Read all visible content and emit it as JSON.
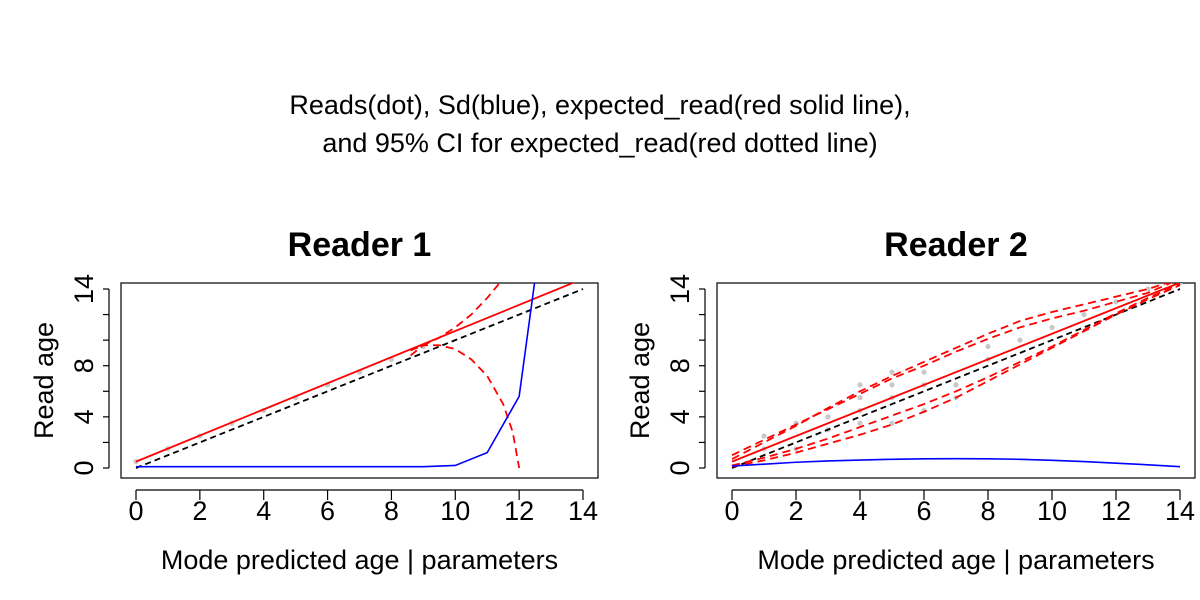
{
  "figure": {
    "title_line1": "Reads(dot), Sd(blue), expected_read(red solid line),",
    "title_line2": "and 95% CI for expected_read(red dotted line)"
  },
  "chart_data": [
    {
      "type": "line",
      "title": "Reader 1",
      "xlabel": "Mode predicted age | parameters",
      "ylabel": "Read age",
      "xlim": [
        0,
        14
      ],
      "ylim": [
        0,
        14
      ],
      "xticks": [
        0,
        2,
        4,
        6,
        8,
        10,
        12,
        14
      ],
      "yticks": [
        0,
        4,
        8,
        14
      ],
      "grid": false,
      "colors": {
        "reads": "#c8c8c8",
        "sd": "#0000ff",
        "expected": "#ff0000",
        "ci": "#ff0000",
        "identity": "#000000"
      },
      "reads_points": {
        "x": [
          0,
          1,
          2,
          3,
          4,
          5,
          6,
          7,
          8,
          9
        ],
        "y": [
          0.5,
          1.5,
          2.5,
          3.5,
          4.5,
          5.5,
          6.5,
          7.5,
          8.5,
          9.5
        ]
      },
      "expected_read": {
        "x": [
          0,
          14
        ],
        "y": [
          0.5,
          14.8
        ]
      },
      "identity_line": {
        "x": [
          0,
          14
        ],
        "y": [
          0,
          14
        ]
      },
      "sd": {
        "x": [
          0,
          1,
          2,
          3,
          4,
          5,
          6,
          7,
          8,
          9,
          10,
          11,
          12,
          12.5
        ],
        "y": [
          0.1,
          0.1,
          0.1,
          0.1,
          0.1,
          0.1,
          0.1,
          0.1,
          0.1,
          0.1,
          0.2,
          1.2,
          5.6,
          14.8
        ]
      },
      "ci_upper": {
        "x": [
          8.6,
          9.0,
          9.5,
          10.0,
          10.5,
          11.0,
          11.5
        ],
        "y": [
          9.2,
          9.6,
          10.2,
          11.0,
          12.0,
          13.3,
          14.8
        ]
      },
      "ci_lower": {
        "x": [
          8.6,
          9.0,
          9.5,
          10.0,
          10.5,
          11.0,
          11.5,
          11.8,
          12.0
        ],
        "y": [
          8.8,
          9.6,
          9.6,
          9.3,
          8.5,
          7.2,
          5.0,
          2.8,
          0
        ]
      }
    },
    {
      "type": "line",
      "title": "Reader 2",
      "xlabel": "Mode predicted age | parameters",
      "ylabel": "Read age",
      "xlim": [
        0,
        14
      ],
      "ylim": [
        0,
        14
      ],
      "xticks": [
        0,
        2,
        4,
        6,
        8,
        10,
        12,
        14
      ],
      "yticks": [
        0,
        4,
        8,
        14
      ],
      "grid": false,
      "colors": {
        "reads": "#c8c8c8",
        "sd": "#0000ff",
        "expected": "#ff0000",
        "ci": "#ff0000",
        "identity": "#000000"
      },
      "reads_points": {
        "x": [
          1,
          1,
          2,
          2,
          3,
          3,
          4,
          4,
          4,
          4,
          5,
          5,
          5,
          5,
          6,
          6,
          6,
          7,
          7,
          8,
          8,
          9,
          10,
          11,
          12,
          13,
          14
        ],
        "y": [
          1.5,
          2.5,
          1.5,
          3.5,
          3.0,
          4.0,
          3.5,
          4.5,
          5.5,
          6.5,
          3.5,
          5.5,
          6.5,
          7.5,
          4.5,
          6.5,
          7.5,
          5.5,
          6.5,
          8.5,
          9.5,
          10.0,
          11.0,
          12.0,
          13.0,
          14.0,
          14.5
        ]
      },
      "expected_read": {
        "x": [
          0,
          14
        ],
        "y": [
          0.5,
          14.5
        ]
      },
      "identity_line": {
        "x": [
          0,
          14
        ],
        "y": [
          0,
          14
        ]
      },
      "sd": {
        "x": [
          0,
          1,
          2,
          3,
          4,
          5,
          6,
          7,
          8,
          9,
          10,
          11,
          12,
          13,
          14
        ],
        "y": [
          0.15,
          0.3,
          0.45,
          0.55,
          0.62,
          0.68,
          0.72,
          0.73,
          0.72,
          0.68,
          0.6,
          0.5,
          0.38,
          0.25,
          0.1
        ]
      },
      "ci_upper": {
        "x": [
          0,
          1,
          2,
          3,
          4,
          5,
          6,
          7,
          8,
          9,
          10,
          11,
          12,
          13,
          14
        ],
        "y": [
          1.0,
          2.2,
          3.4,
          4.6,
          5.8,
          7.0,
          8.0,
          9.1,
          10.1,
          11.0,
          11.7,
          12.3,
          13.0,
          13.7,
          14.8
        ]
      },
      "ci_lower": {
        "x": [
          0,
          1,
          2,
          3,
          4,
          5,
          6,
          7,
          8,
          9,
          10,
          11,
          12,
          13,
          14
        ],
        "y": [
          0.2,
          0.8,
          1.5,
          2.3,
          3.2,
          4.1,
          5.0,
          6.0,
          7.1,
          8.3,
          9.5,
          10.8,
          12.1,
          13.3,
          14.4
        ]
      },
      "ci_outer_upper": {
        "x": [
          0,
          1,
          2,
          3,
          4,
          5,
          6,
          7,
          8,
          9,
          10,
          11,
          12,
          13,
          14
        ],
        "y": [
          0.7,
          2.0,
          3.3,
          4.7,
          6.0,
          7.2,
          8.3,
          9.4,
          10.5,
          11.5,
          12.2,
          12.8,
          13.4,
          14.0,
          14.8
        ]
      },
      "ci_outer_lower": {
        "x": [
          0,
          1,
          2,
          3,
          4,
          5,
          6,
          7,
          8,
          9,
          10,
          11,
          12,
          13,
          14
        ],
        "y": [
          0.1,
          0.6,
          1.2,
          1.9,
          2.6,
          3.4,
          4.4,
          5.5,
          6.8,
          8.1,
          9.4,
          10.7,
          12.0,
          13.2,
          14.3
        ]
      }
    }
  ]
}
